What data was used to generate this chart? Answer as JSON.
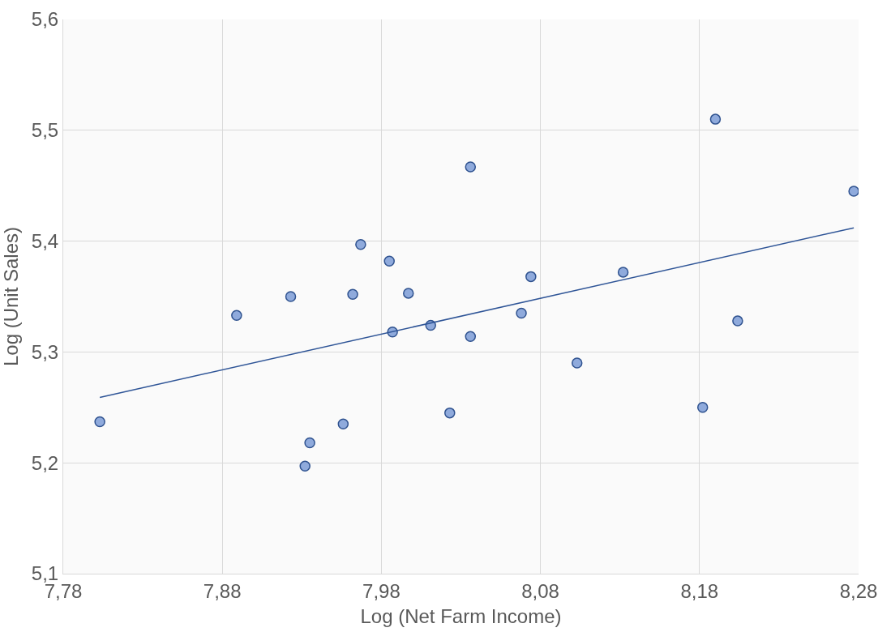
{
  "chart_data": {
    "type": "scatter",
    "xlabel": "Log (Net Farm Income)",
    "ylabel": "Log (Unit Sales)",
    "xlim": [
      7.78,
      8.28
    ],
    "xticks": [
      {
        "value": 7.78,
        "label": "7,78"
      },
      {
        "value": 7.88,
        "label": "7,88"
      },
      {
        "value": 7.98,
        "label": "7,98"
      },
      {
        "value": 8.08,
        "label": "8,08"
      },
      {
        "value": 8.18,
        "label": "8,18"
      },
      {
        "value": 8.28,
        "label": "8,28"
      }
    ],
    "ylim": [
      5.1,
      5.6
    ],
    "yticks": [
      {
        "value": 5.1,
        "label": "5,1"
      },
      {
        "value": 5.2,
        "label": "5,2"
      },
      {
        "value": 5.3,
        "label": "5,3"
      },
      {
        "value": 5.4,
        "label": "5,4"
      },
      {
        "value": 5.5,
        "label": "5,5"
      },
      {
        "value": 5.6,
        "label": "5,6"
      }
    ],
    "grid": true,
    "series": [
      {
        "marker": "circle",
        "color": "#8faadc",
        "x": [
          7.803,
          7.889,
          7.923,
          7.932,
          7.935,
          7.956,
          7.962,
          7.967,
          7.985,
          7.987,
          7.997,
          8.011,
          8.023,
          8.036,
          8.036,
          8.068,
          8.074,
          8.103,
          8.132,
          8.182,
          8.19,
          8.204,
          8.277
        ],
        "values": [
          5.237,
          5.333,
          5.35,
          5.197,
          5.218,
          5.235,
          5.352,
          5.397,
          5.382,
          5.318,
          5.353,
          5.324,
          5.245,
          5.467,
          5.314,
          5.335,
          5.368,
          5.29,
          5.372,
          5.25,
          5.51,
          5.328,
          5.445
        ]
      },
      {
        "type": "line",
        "marker": "none",
        "line_style": "solid",
        "color": "#2f5597",
        "x": [
          7.803,
          8.277
        ],
        "values": [
          5.259,
          5.412
        ]
      }
    ]
  }
}
